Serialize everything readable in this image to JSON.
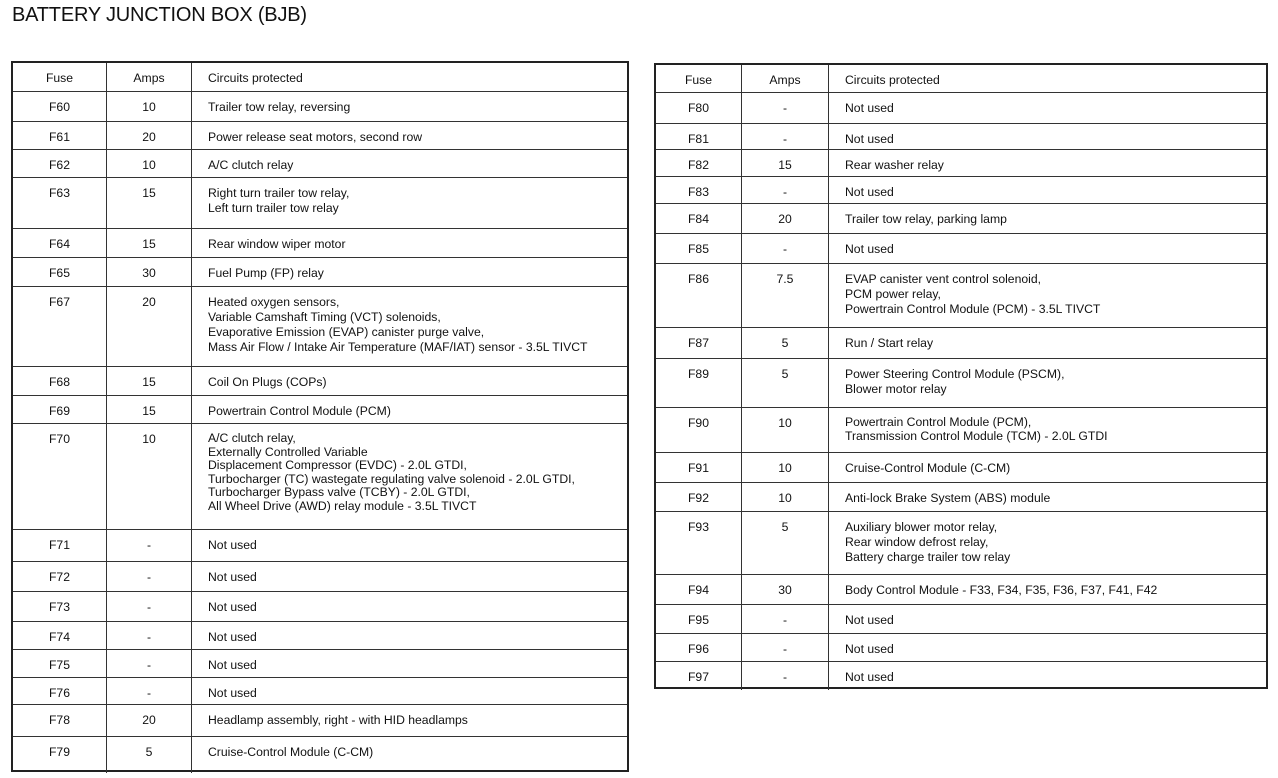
{
  "title": "BATTERY JUNCTION BOX (BJB)",
  "tables": [
    {
      "headers": [
        "Fuse",
        "Amps",
        "Circuits protected"
      ],
      "rows": [
        {
          "fuse": "F60",
          "amps": "10",
          "circuits": [
            "Trailer tow relay, reversing"
          ]
        },
        {
          "fuse": "F61",
          "amps": "20",
          "circuits": [
            "Power release seat motors, second row"
          ]
        },
        {
          "fuse": "F62",
          "amps": "10",
          "circuits": [
            "A/C clutch relay"
          ]
        },
        {
          "fuse": "F63",
          "amps": "15",
          "circuits": [
            "Right turn trailer tow relay,",
            "Left turn trailer tow relay"
          ]
        },
        {
          "fuse": "F64",
          "amps": "15",
          "circuits": [
            "Rear window wiper motor"
          ]
        },
        {
          "fuse": "F65",
          "amps": "30",
          "circuits": [
            "Fuel Pump (FP) relay"
          ]
        },
        {
          "fuse": "F67",
          "amps": "20",
          "circuits": [
            "Heated oxygen sensors,",
            "Variable Camshaft Timing (VCT) solenoids,",
            "Evaporative Emission (EVAP) canister purge valve,",
            "Mass Air Flow / Intake Air Temperature (MAF/IAT) sensor - 3.5L TIVCT"
          ]
        },
        {
          "fuse": "F68",
          "amps": "15",
          "circuits": [
            "Coil On Plugs (COPs)"
          ]
        },
        {
          "fuse": "F69",
          "amps": "15",
          "circuits": [
            "Powertrain Control Module (PCM)"
          ]
        },
        {
          "fuse": "F70",
          "amps": "10",
          "circuits": [
            "A/C clutch relay,",
            "Externally Controlled Variable",
            "Displacement Compressor (EVDC) - 2.0L GTDI,",
            "Turbocharger (TC) wastegate regulating valve solenoid - 2.0L GTDI,",
            "Turbocharger Bypass valve (TCBY) - 2.0L GTDI,",
            "All Wheel Drive (AWD) relay module - 3.5L TIVCT"
          ]
        },
        {
          "fuse": "F71",
          "amps": "-",
          "circuits": [
            "Not used"
          ]
        },
        {
          "fuse": "F72",
          "amps": "-",
          "circuits": [
            "Not used"
          ]
        },
        {
          "fuse": "F73",
          "amps": "-",
          "circuits": [
            "Not used"
          ]
        },
        {
          "fuse": "F74",
          "amps": "-",
          "circuits": [
            "Not used"
          ]
        },
        {
          "fuse": "F75",
          "amps": "-",
          "circuits": [
            "Not used"
          ]
        },
        {
          "fuse": "F76",
          "amps": "-",
          "circuits": [
            "Not used"
          ]
        },
        {
          "fuse": "F78",
          "amps": "20",
          "circuits": [
            "Headlamp assembly, right - with HID headlamps"
          ]
        },
        {
          "fuse": "F79",
          "amps": "5",
          "circuits": [
            "Cruise-Control Module (C-CM)"
          ]
        }
      ]
    },
    {
      "headers": [
        "Fuse",
        "Amps",
        "Circuits protected"
      ],
      "rows": [
        {
          "fuse": "F80",
          "amps": "-",
          "circuits": [
            "Not used"
          ]
        },
        {
          "fuse": "F81",
          "amps": "-",
          "circuits": [
            "Not used"
          ]
        },
        {
          "fuse": "F82",
          "amps": "15",
          "circuits": [
            "Rear washer relay"
          ]
        },
        {
          "fuse": "F83",
          "amps": "-",
          "circuits": [
            "Not used"
          ]
        },
        {
          "fuse": "F84",
          "amps": "20",
          "circuits": [
            "Trailer tow relay, parking lamp"
          ]
        },
        {
          "fuse": "F85",
          "amps": "-",
          "circuits": [
            "Not used"
          ]
        },
        {
          "fuse": "F86",
          "amps": "7.5",
          "circuits": [
            "EVAP canister vent control solenoid,",
            "PCM power relay,",
            "Powertrain Control Module (PCM) - 3.5L TIVCT"
          ]
        },
        {
          "fuse": "F87",
          "amps": "5",
          "circuits": [
            "Run / Start relay"
          ]
        },
        {
          "fuse": "F89",
          "amps": "5",
          "circuits": [
            "Power Steering Control Module (PSCM),",
            "Blower motor relay"
          ]
        },
        {
          "fuse": "F90",
          "amps": "10",
          "circuits": [
            "Powertrain Control Module (PCM),",
            "Transmission Control Module (TCM) - 2.0L GTDI"
          ]
        },
        {
          "fuse": "F91",
          "amps": "10",
          "circuits": [
            "Cruise-Control Module (C-CM)"
          ]
        },
        {
          "fuse": "F92",
          "amps": "10",
          "circuits": [
            "Anti-lock Brake System (ABS) module"
          ]
        },
        {
          "fuse": "F93",
          "amps": "5",
          "circuits": [
            "Auxiliary blower motor relay,",
            "Rear window defrost relay,",
            "Battery charge trailer tow relay"
          ]
        },
        {
          "fuse": "F94",
          "amps": "30",
          "circuits": [
            "Body Control Module - F33, F34, F35, F36, F37, F41, F42"
          ]
        },
        {
          "fuse": "F95",
          "amps": "-",
          "circuits": [
            "Not used"
          ]
        },
        {
          "fuse": "F96",
          "amps": "-",
          "circuits": [
            "Not used"
          ]
        },
        {
          "fuse": "F97",
          "amps": "-",
          "circuits": [
            "Not used"
          ]
        }
      ]
    }
  ]
}
